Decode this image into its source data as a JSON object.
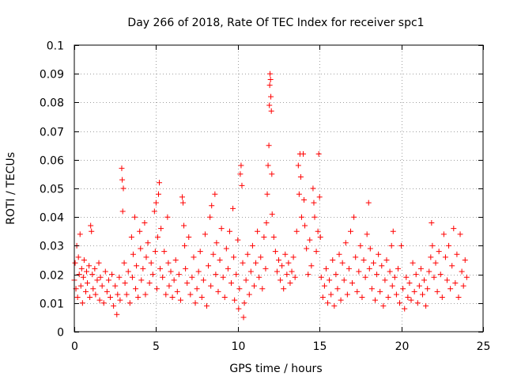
{
  "chart_data": {
    "type": "scatter",
    "title": "Day 266 of 2018, Rate Of TEC Index for receiver spc1",
    "xlabel": "GPS time / hours",
    "ylabel": "ROTI / TECUs",
    "xlim": [
      0,
      25
    ],
    "ylim": [
      0,
      0.1
    ],
    "xticks": [
      0,
      5,
      10,
      15,
      20,
      25
    ],
    "xtick_labels": [
      "0",
      "5",
      "10",
      "15",
      "20",
      "25"
    ],
    "yticks": [
      0,
      0.01,
      0.02,
      0.03,
      0.04,
      0.05,
      0.06,
      0.07,
      0.08,
      0.09,
      0.1
    ],
    "ytick_labels": [
      "0",
      "0.01",
      "0.02",
      "0.03",
      "0.04",
      "0.05",
      "0.06",
      "0.07",
      "0.08",
      "0.09",
      "0.1"
    ],
    "grid": true,
    "marker": "+",
    "color": "#ff0000",
    "series": [
      {
        "name": "ROTI",
        "points": [
          [
            0.0,
            0.018
          ],
          [
            0.05,
            0.024
          ],
          [
            0.1,
            0.015
          ],
          [
            0.15,
            0.03
          ],
          [
            0.2,
            0.012
          ],
          [
            0.25,
            0.026
          ],
          [
            0.3,
            0.02
          ],
          [
            0.35,
            0.034
          ],
          [
            0.4,
            0.016
          ],
          [
            0.45,
            0.022
          ],
          [
            0.5,
            0.01
          ],
          [
            0.55,
            0.019
          ],
          [
            0.6,
            0.025
          ],
          [
            0.7,
            0.014
          ],
          [
            0.75,
            0.021
          ],
          [
            0.8,
            0.017
          ],
          [
            0.9,
            0.023
          ],
          [
            0.95,
            0.012
          ],
          [
            1.0,
            0.037
          ],
          [
            1.05,
            0.035
          ],
          [
            1.1,
            0.02
          ],
          [
            1.15,
            0.015
          ],
          [
            1.25,
            0.022
          ],
          [
            1.3,
            0.013
          ],
          [
            1.4,
            0.018
          ],
          [
            1.5,
            0.024
          ],
          [
            1.55,
            0.011
          ],
          [
            1.6,
            0.019
          ],
          [
            1.7,
            0.016
          ],
          [
            1.8,
            0.01
          ],
          [
            1.9,
            0.021
          ],
          [
            2.0,
            0.014
          ],
          [
            2.1,
            0.018
          ],
          [
            2.2,
            0.012
          ],
          [
            2.3,
            0.02
          ],
          [
            2.4,
            0.009
          ],
          [
            2.5,
            0.016
          ],
          [
            2.6,
            0.006
          ],
          [
            2.65,
            0.013
          ],
          [
            2.75,
            0.019
          ],
          [
            2.8,
            0.011
          ],
          [
            2.9,
            0.057
          ],
          [
            2.93,
            0.053
          ],
          [
            2.96,
            0.042
          ],
          [
            3.0,
            0.05
          ],
          [
            3.05,
            0.024
          ],
          [
            3.1,
            0.017
          ],
          [
            3.2,
            0.013
          ],
          [
            3.3,
            0.021
          ],
          [
            3.4,
            0.01
          ],
          [
            3.5,
            0.033
          ],
          [
            3.55,
            0.019
          ],
          [
            3.6,
            0.027
          ],
          [
            3.7,
            0.04
          ],
          [
            3.75,
            0.015
          ],
          [
            3.8,
            0.023
          ],
          [
            3.9,
            0.012
          ],
          [
            4.0,
            0.035
          ],
          [
            4.05,
            0.029
          ],
          [
            4.1,
            0.018
          ],
          [
            4.2,
            0.022
          ],
          [
            4.3,
            0.038
          ],
          [
            4.35,
            0.013
          ],
          [
            4.4,
            0.026
          ],
          [
            4.5,
            0.031
          ],
          [
            4.6,
            0.017
          ],
          [
            4.7,
            0.024
          ],
          [
            4.8,
            0.02
          ],
          [
            4.9,
            0.042
          ],
          [
            4.95,
            0.028
          ],
          [
            5.0,
            0.045
          ],
          [
            5.05,
            0.015
          ],
          [
            5.1,
            0.033
          ],
          [
            5.15,
            0.048
          ],
          [
            5.2,
            0.052
          ],
          [
            5.25,
            0.022
          ],
          [
            5.3,
            0.036
          ],
          [
            5.4,
            0.019
          ],
          [
            5.5,
            0.028
          ],
          [
            5.6,
            0.013
          ],
          [
            5.7,
            0.04
          ],
          [
            5.75,
            0.024
          ],
          [
            5.8,
            0.016
          ],
          [
            5.9,
            0.021
          ],
          [
            6.0,
            0.012
          ],
          [
            6.1,
            0.018
          ],
          [
            6.2,
            0.025
          ],
          [
            6.3,
            0.014
          ],
          [
            6.4,
            0.02
          ],
          [
            6.5,
            0.011
          ],
          [
            6.6,
            0.047
          ],
          [
            6.65,
            0.045
          ],
          [
            6.7,
            0.037
          ],
          [
            6.75,
            0.03
          ],
          [
            6.8,
            0.022
          ],
          [
            6.9,
            0.017
          ],
          [
            7.0,
            0.033
          ],
          [
            7.1,
            0.013
          ],
          [
            7.2,
            0.019
          ],
          [
            7.3,
            0.026
          ],
          [
            7.4,
            0.01
          ],
          [
            7.5,
            0.015
          ],
          [
            7.6,
            0.021
          ],
          [
            7.7,
            0.028
          ],
          [
            7.8,
            0.012
          ],
          [
            7.9,
            0.018
          ],
          [
            8.0,
            0.034
          ],
          [
            8.1,
            0.009
          ],
          [
            8.2,
            0.023
          ],
          [
            8.3,
            0.04
          ],
          [
            8.35,
            0.016
          ],
          [
            8.4,
            0.044
          ],
          [
            8.5,
            0.027
          ],
          [
            8.6,
            0.048
          ],
          [
            8.65,
            0.02
          ],
          [
            8.7,
            0.031
          ],
          [
            8.8,
            0.014
          ],
          [
            8.9,
            0.025
          ],
          [
            9.0,
            0.036
          ],
          [
            9.1,
            0.019
          ],
          [
            9.2,
            0.012
          ],
          [
            9.3,
            0.029
          ],
          [
            9.4,
            0.022
          ],
          [
            9.5,
            0.035
          ],
          [
            9.6,
            0.017
          ],
          [
            9.7,
            0.043
          ],
          [
            9.75,
            0.026
          ],
          [
            9.8,
            0.011
          ],
          [
            9.9,
            0.02
          ],
          [
            10.0,
            0.032
          ],
          [
            10.05,
            0.008
          ],
          [
            10.1,
            0.015
          ],
          [
            10.15,
            0.055
          ],
          [
            10.2,
            0.058
          ],
          [
            10.25,
            0.051
          ],
          [
            10.3,
            0.024
          ],
          [
            10.35,
            0.005
          ],
          [
            10.4,
            0.01
          ],
          [
            10.5,
            0.018
          ],
          [
            10.6,
            0.027
          ],
          [
            10.7,
            0.013
          ],
          [
            10.8,
            0.021
          ],
          [
            10.9,
            0.03
          ],
          [
            11.0,
            0.016
          ],
          [
            11.1,
            0.024
          ],
          [
            11.2,
            0.035
          ],
          [
            11.3,
            0.019
          ],
          [
            11.4,
            0.026
          ],
          [
            11.5,
            0.015
          ],
          [
            11.6,
            0.033
          ],
          [
            11.7,
            0.022
          ],
          [
            11.75,
            0.038
          ],
          [
            11.8,
            0.048
          ],
          [
            11.85,
            0.058
          ],
          [
            11.9,
            0.065
          ],
          [
            11.93,
            0.079
          ],
          [
            11.95,
            0.086
          ],
          [
            11.97,
            0.09
          ],
          [
            12.0,
            0.088
          ],
          [
            12.02,
            0.082
          ],
          [
            12.05,
            0.077
          ],
          [
            12.08,
            0.055
          ],
          [
            12.1,
            0.041
          ],
          [
            12.2,
            0.033
          ],
          [
            12.3,
            0.028
          ],
          [
            12.4,
            0.021
          ],
          [
            12.5,
            0.025
          ],
          [
            12.6,
            0.018
          ],
          [
            12.7,
            0.023
          ],
          [
            12.8,
            0.015
          ],
          [
            12.9,
            0.027
          ],
          [
            13.0,
            0.02
          ],
          [
            13.1,
            0.024
          ],
          [
            13.2,
            0.017
          ],
          [
            13.3,
            0.021
          ],
          [
            13.4,
            0.026
          ],
          [
            13.5,
            0.019
          ],
          [
            13.6,
            0.035
          ],
          [
            13.7,
            0.058
          ],
          [
            13.75,
            0.048
          ],
          [
            13.8,
            0.062
          ],
          [
            13.85,
            0.054
          ],
          [
            13.9,
            0.04
          ],
          [
            14.0,
            0.062
          ],
          [
            14.05,
            0.046
          ],
          [
            14.1,
            0.037
          ],
          [
            14.2,
            0.029
          ],
          [
            14.3,
            0.02
          ],
          [
            14.4,
            0.032
          ],
          [
            14.5,
            0.023
          ],
          [
            14.6,
            0.05
          ],
          [
            14.65,
            0.045
          ],
          [
            14.7,
            0.04
          ],
          [
            14.8,
            0.028
          ],
          [
            14.9,
            0.035
          ],
          [
            14.95,
            0.062
          ],
          [
            15.0,
            0.047
          ],
          [
            15.05,
            0.033
          ],
          [
            15.1,
            0.019
          ],
          [
            15.2,
            0.012
          ],
          [
            15.3,
            0.016
          ],
          [
            15.4,
            0.022
          ],
          [
            15.5,
            0.01
          ],
          [
            15.6,
            0.018
          ],
          [
            15.7,
            0.013
          ],
          [
            15.8,
            0.025
          ],
          [
            15.9,
            0.009
          ],
          [
            16.0,
            0.02
          ],
          [
            16.1,
            0.015
          ],
          [
            16.2,
            0.027
          ],
          [
            16.3,
            0.011
          ],
          [
            16.4,
            0.024
          ],
          [
            16.5,
            0.018
          ],
          [
            16.6,
            0.031
          ],
          [
            16.7,
            0.013
          ],
          [
            16.8,
            0.022
          ],
          [
            16.9,
            0.035
          ],
          [
            17.0,
            0.017
          ],
          [
            17.1,
            0.04
          ],
          [
            17.2,
            0.026
          ],
          [
            17.3,
            0.014
          ],
          [
            17.4,
            0.021
          ],
          [
            17.5,
            0.03
          ],
          [
            17.6,
            0.012
          ],
          [
            17.7,
            0.025
          ],
          [
            17.8,
            0.019
          ],
          [
            17.9,
            0.034
          ],
          [
            18.0,
            0.045
          ],
          [
            18.05,
            0.022
          ],
          [
            18.1,
            0.029
          ],
          [
            18.2,
            0.015
          ],
          [
            18.3,
            0.024
          ],
          [
            18.4,
            0.011
          ],
          [
            18.5,
            0.02
          ],
          [
            18.6,
            0.027
          ],
          [
            18.7,
            0.014
          ],
          [
            18.8,
            0.023
          ],
          [
            18.9,
            0.009
          ],
          [
            19.0,
            0.018
          ],
          [
            19.1,
            0.025
          ],
          [
            19.2,
            0.012
          ],
          [
            19.3,
            0.021
          ],
          [
            19.4,
            0.03
          ],
          [
            19.45,
            0.016
          ],
          [
            19.5,
            0.035
          ],
          [
            19.6,
            0.019
          ],
          [
            19.7,
            0.013
          ],
          [
            19.8,
            0.022
          ],
          [
            19.9,
            0.01
          ],
          [
            20.0,
            0.03
          ],
          [
            20.1,
            0.015
          ],
          [
            20.2,
            0.008
          ],
          [
            20.3,
            0.019
          ],
          [
            20.4,
            0.012
          ],
          [
            20.5,
            0.017
          ],
          [
            20.6,
            0.011
          ],
          [
            20.7,
            0.024
          ],
          [
            20.8,
            0.014
          ],
          [
            20.9,
            0.02
          ],
          [
            21.0,
            0.01
          ],
          [
            21.1,
            0.016
          ],
          [
            21.2,
            0.022
          ],
          [
            21.3,
            0.013
          ],
          [
            21.4,
            0.018
          ],
          [
            21.5,
            0.009
          ],
          [
            21.6,
            0.015
          ],
          [
            21.7,
            0.021
          ],
          [
            21.8,
            0.026
          ],
          [
            21.85,
            0.038
          ],
          [
            21.9,
            0.03
          ],
          [
            22.0,
            0.019
          ],
          [
            22.1,
            0.024
          ],
          [
            22.2,
            0.014
          ],
          [
            22.3,
            0.028
          ],
          [
            22.4,
            0.02
          ],
          [
            22.5,
            0.012
          ],
          [
            22.6,
            0.034
          ],
          [
            22.7,
            0.026
          ],
          [
            22.8,
            0.018
          ],
          [
            22.9,
            0.03
          ],
          [
            23.0,
            0.015
          ],
          [
            23.1,
            0.023
          ],
          [
            23.2,
            0.036
          ],
          [
            23.3,
            0.017
          ],
          [
            23.4,
            0.027
          ],
          [
            23.5,
            0.012
          ],
          [
            23.6,
            0.034
          ],
          [
            23.7,
            0.021
          ],
          [
            23.8,
            0.016
          ],
          [
            23.9,
            0.025
          ],
          [
            24.0,
            0.019
          ]
        ]
      }
    ]
  }
}
